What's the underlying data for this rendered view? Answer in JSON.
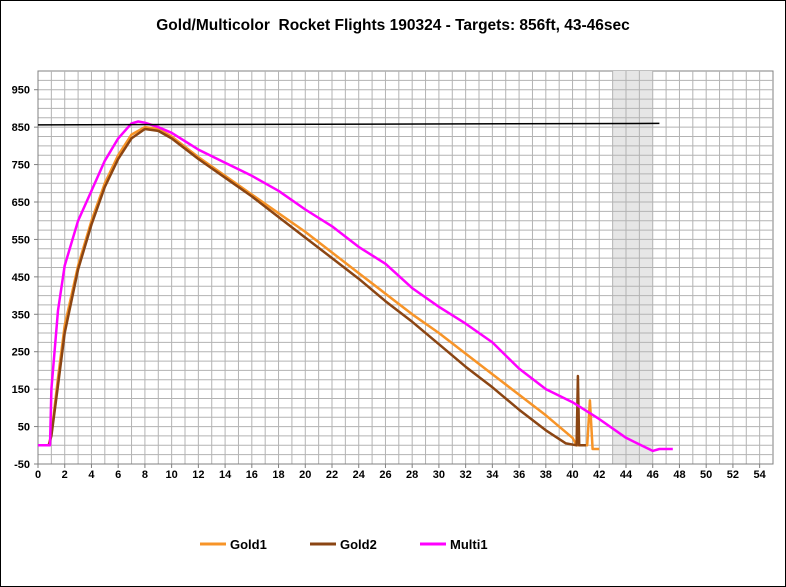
{
  "chart_data": {
    "type": "line",
    "title": "Gold/Multicolor  Rocket Flights 190324 - Targets: 856ft, 43-46sec",
    "xlabel": "",
    "ylabel": "",
    "xlim": [
      0,
      55
    ],
    "ylim": [
      -50,
      1000
    ],
    "x_ticks": [
      0,
      2,
      4,
      6,
      8,
      10,
      12,
      14,
      16,
      18,
      20,
      22,
      24,
      26,
      28,
      30,
      32,
      34,
      36,
      38,
      40,
      42,
      44,
      46,
      48,
      50,
      52,
      54
    ],
    "y_ticks": [
      -50,
      50,
      150,
      250,
      350,
      450,
      550,
      650,
      750,
      850,
      950
    ],
    "grid": true,
    "legend_position": "bottom",
    "target_altitude": 856,
    "target_time_window": [
      43,
      46
    ],
    "series": [
      {
        "name": "Gold1",
        "color": "#F79428",
        "x": [
          0,
          0.8,
          1,
          1.5,
          2,
          3,
          4,
          5,
          6,
          7,
          8,
          9,
          10,
          12,
          14,
          16,
          18,
          20,
          22,
          24,
          26,
          28,
          30,
          32,
          34,
          36,
          38,
          40,
          40.3,
          41.1,
          41.3,
          41.5,
          42
        ],
        "y": [
          0,
          0,
          30,
          180,
          320,
          480,
          600,
          700,
          775,
          830,
          850,
          845,
          825,
          770,
          720,
          670,
          620,
          570,
          515,
          460,
          405,
          350,
          300,
          245,
          190,
          135,
          80,
          20,
          0,
          0,
          120,
          -10,
          -10
        ]
      },
      {
        "name": "Gold2",
        "color": "#8B4513",
        "x": [
          0,
          0.8,
          1,
          1.5,
          2,
          3,
          4,
          5,
          6,
          7,
          8,
          9,
          10,
          12,
          14,
          16,
          18,
          20,
          22,
          24,
          26,
          28,
          30,
          32,
          34,
          36,
          38,
          39.5,
          40.3,
          40.4,
          40.5,
          41
        ],
        "y": [
          0,
          0,
          25,
          160,
          300,
          470,
          590,
          690,
          765,
          820,
          845,
          840,
          820,
          765,
          715,
          665,
          610,
          555,
          500,
          445,
          385,
          330,
          270,
          210,
          155,
          95,
          40,
          5,
          0,
          185,
          0,
          0
        ]
      },
      {
        "name": "Multi1",
        "color": "#FF00FF",
        "x": [
          0,
          0.9,
          1,
          1.5,
          2,
          3,
          4,
          5,
          6,
          7,
          7.5,
          8,
          9,
          10,
          12,
          14,
          16,
          18,
          20,
          22,
          24,
          26,
          28,
          30,
          32,
          34,
          36,
          38,
          40,
          42,
          44,
          46,
          46.5,
          47.5
        ],
        "y": [
          0,
          0,
          150,
          360,
          480,
          600,
          680,
          760,
          820,
          860,
          865,
          862,
          850,
          835,
          790,
          755,
          720,
          680,
          630,
          585,
          530,
          485,
          420,
          370,
          325,
          275,
          205,
          150,
          115,
          70,
          20,
          -15,
          -10,
          -10
        ]
      },
      {
        "name": "",
        "color": "#000000",
        "x": [
          0,
          46.5
        ],
        "y": [
          856,
          860
        ]
      }
    ],
    "highlight_band": {
      "x": [
        43,
        46
      ],
      "color": "#E6E6E6"
    }
  }
}
